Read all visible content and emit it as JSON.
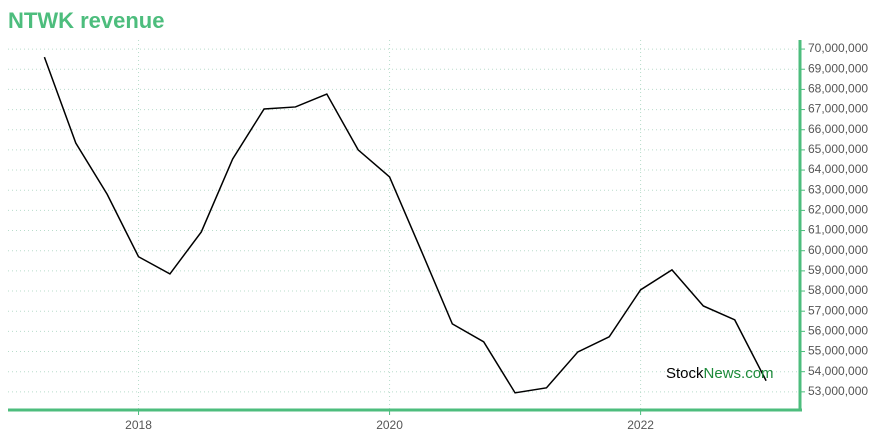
{
  "chart_data": {
    "type": "line",
    "title": "NTWK revenue",
    "x": [
      2017.25,
      2017.5,
      2017.75,
      2018.0,
      2018.25,
      2018.5,
      2018.75,
      2019.0,
      2019.25,
      2019.5,
      2019.75,
      2020.0,
      2020.25,
      2020.5,
      2020.75,
      2021.0,
      2021.25,
      2021.5,
      2021.75,
      2022.0,
      2022.25,
      2022.5,
      2022.75,
      2023.0
    ],
    "series": [
      {
        "name": "revenue",
        "color": "#000000",
        "values": [
          69600000,
          65340000,
          62800000,
          59700000,
          58850000,
          60930000,
          64550000,
          67030000,
          67130000,
          67770000,
          65000000,
          63660000,
          60040000,
          56370000,
          55480000,
          52950000,
          53200000,
          54980000,
          55730000,
          58060000,
          59050000,
          57260000,
          56570000,
          53550000
        ]
      }
    ],
    "xlim": [
      2016.96,
      2023.27
    ],
    "xticks": [
      2018,
      2020,
      2022
    ],
    "ylim": [
      52100000,
      70450000
    ],
    "yticks": [
      {
        "value": 53000000,
        "label": "53,000,000"
      },
      {
        "value": 54000000,
        "label": "54,000,000"
      },
      {
        "value": 55000000,
        "label": "55,000,000"
      },
      {
        "value": 56000000,
        "label": "56,000,000"
      },
      {
        "value": 57000000,
        "label": "57,000,000"
      },
      {
        "value": 58000000,
        "label": "58,000,000"
      },
      {
        "value": 59000000,
        "label": "59,000,000"
      },
      {
        "value": 60000000,
        "label": "60,000,000"
      },
      {
        "value": 61000000,
        "label": "61,000,000"
      },
      {
        "value": 62000000,
        "label": "62,000,000"
      },
      {
        "value": 63000000,
        "label": "63,000,000"
      },
      {
        "value": 64000000,
        "label": "64,000,000"
      },
      {
        "value": 65000000,
        "label": "65,000,000"
      },
      {
        "value": 66000000,
        "label": "66,000,000"
      },
      {
        "value": 67000000,
        "label": "67,000,000"
      },
      {
        "value": 68000000,
        "label": "68,000,000"
      },
      {
        "value": 69000000,
        "label": "69,000,000"
      },
      {
        "value": 70000000,
        "label": "70,000,000"
      }
    ],
    "grid": true,
    "axis_color": "#4dbd7d",
    "watermark": {
      "prefix": "Stock",
      "suffix": "News.com"
    }
  }
}
